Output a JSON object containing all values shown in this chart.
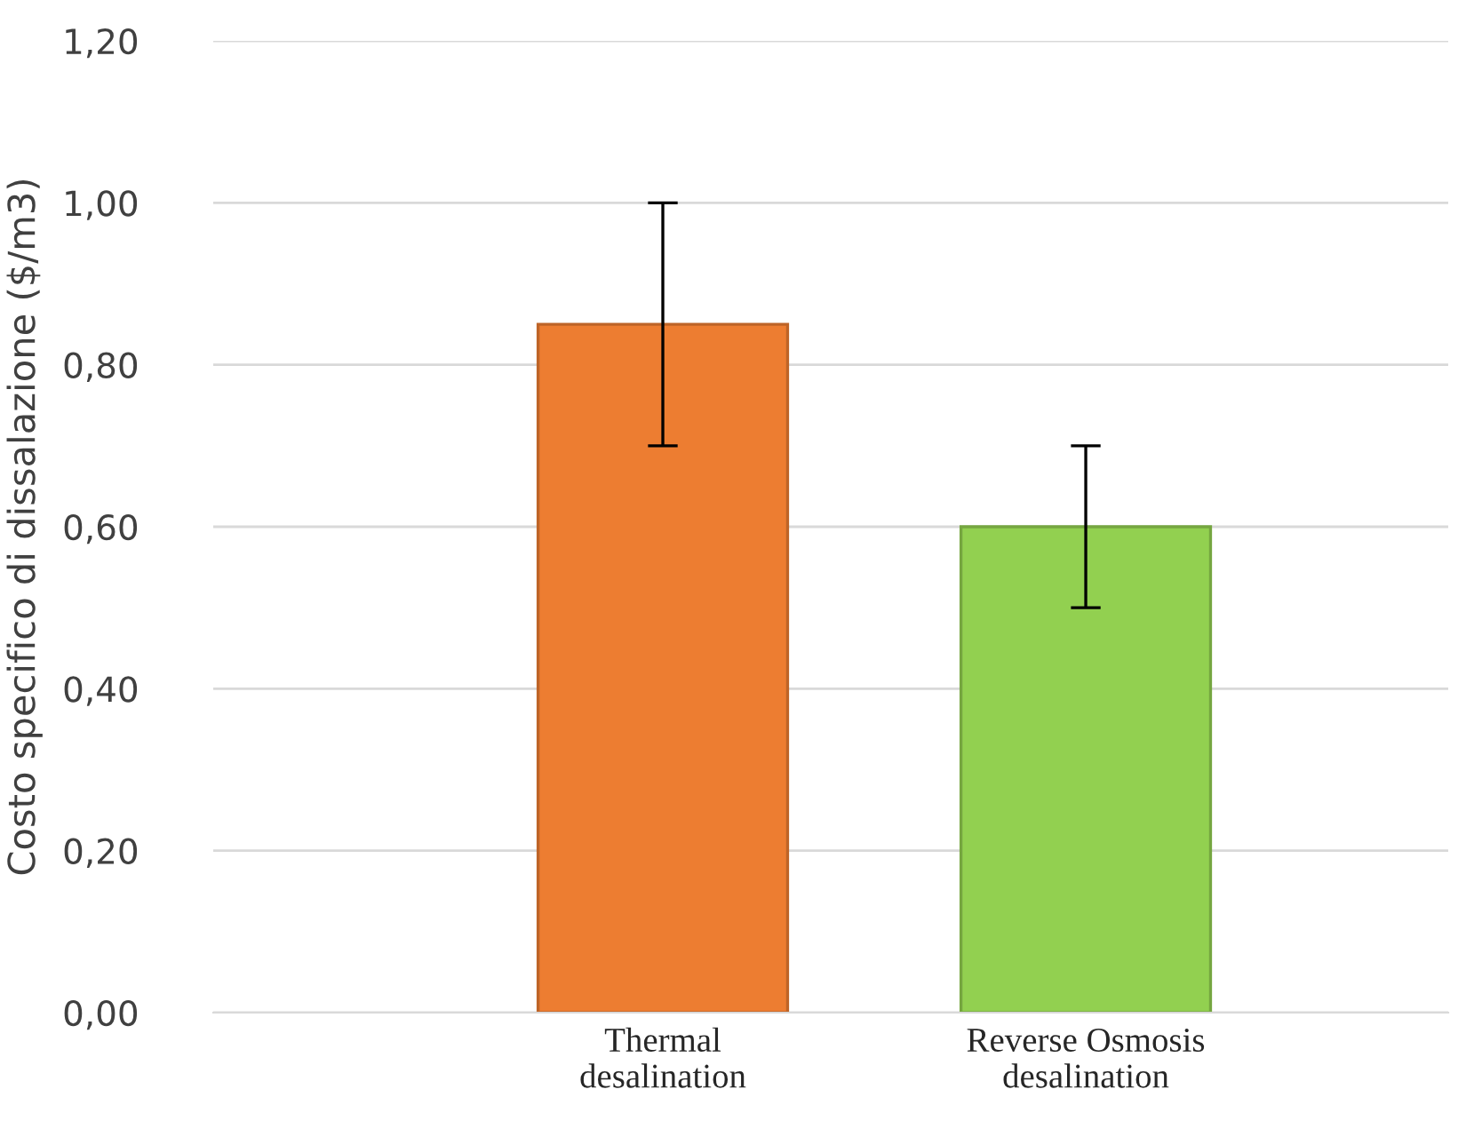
{
  "chart_data": {
    "type": "bar",
    "ylabel": "Costo specifico di dissalazione ($/m3)",
    "categories": [
      "Thermal\ndesalination",
      "Reverse Osmosis\ndesalination"
    ],
    "values": [
      0.85,
      0.6
    ],
    "colors": [
      "#ed7d31",
      "#92d050"
    ],
    "errors": [
      [
        0.7,
        1.0
      ],
      [
        0.5,
        0.7
      ]
    ],
    "ylim": [
      0,
      1.2
    ],
    "yticks": [
      {
        "value": 0,
        "label": "0,00"
      },
      {
        "value": 0.2,
        "label": "0,20"
      },
      {
        "value": 0.4,
        "label": "0,40"
      },
      {
        "value": 0.6,
        "label": "0,60"
      },
      {
        "value": 0.8,
        "label": "0,80"
      },
      {
        "value": 1.0,
        "label": "1,00"
      },
      {
        "value": 1.2,
        "label": "1,20"
      }
    ],
    "grid": "y",
    "legend": false
  }
}
